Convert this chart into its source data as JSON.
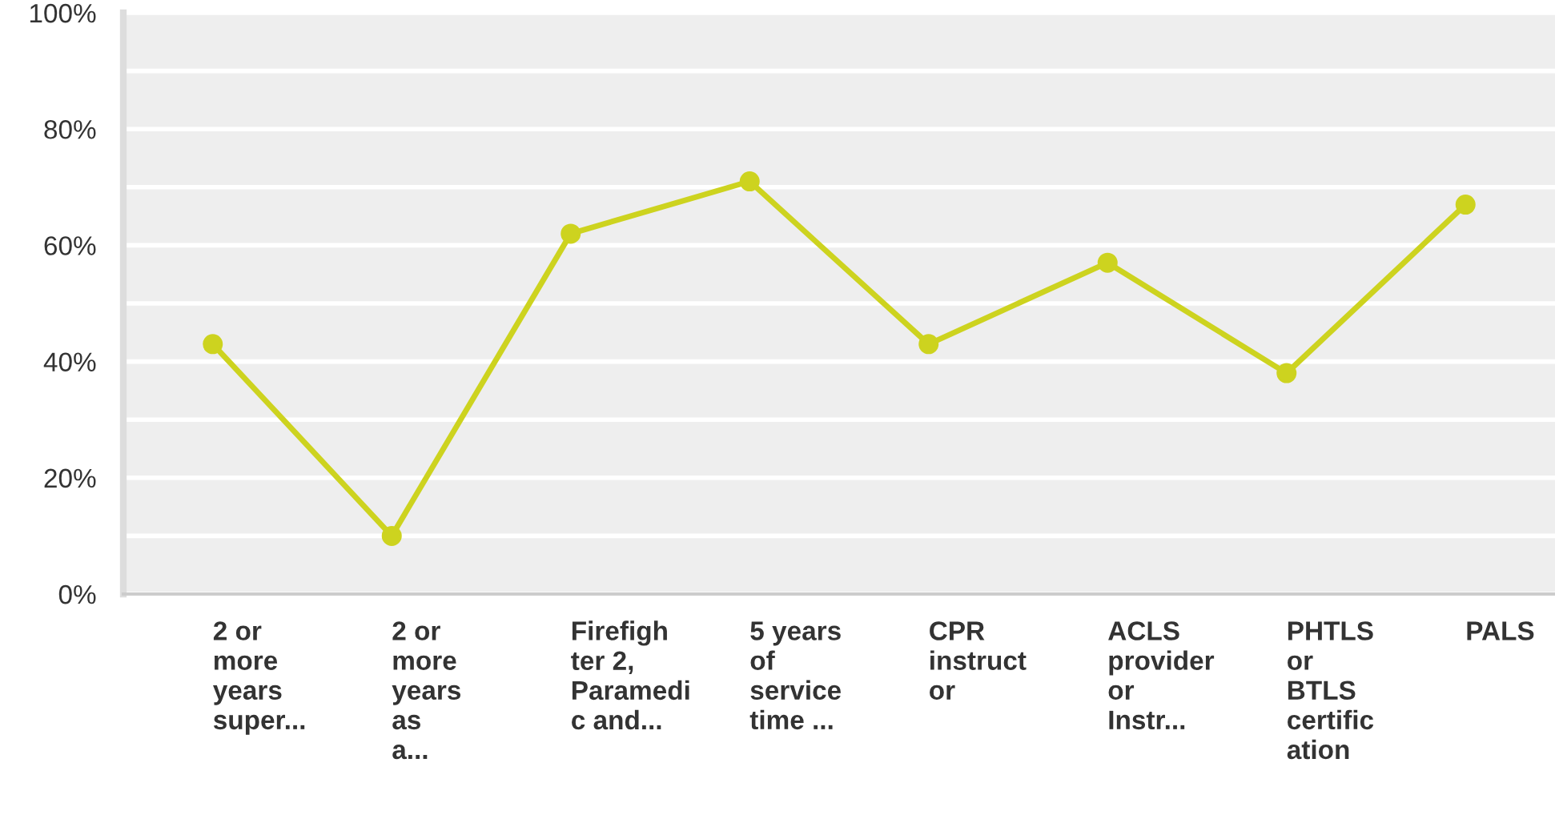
{
  "chart_data": {
    "type": "line",
    "categories": [
      "2 or\nmore\nyears\nsuper...",
      "2 or\nmore\nyears\nas\na...",
      "Firefigh\nter 2,\nParamedi\nc and...",
      "5 years\nof\nservice\ntime ...",
      "CPR\ninstruct\nor",
      "ACLS\nprovider\nor\nInstr...",
      "PHTLS\nor\nBTLS\ncertific\nation",
      "PALS"
    ],
    "series": [
      {
        "color": "#cdd31f",
        "values": [
          43,
          10,
          62,
          71,
          43,
          57,
          38,
          67
        ]
      }
    ],
    "ylim": [
      0,
      100
    ],
    "yticks": [
      {
        "value": 0,
        "label": "0%"
      },
      {
        "value": 10,
        "label": null
      },
      {
        "value": 20,
        "label": "20%"
      },
      {
        "value": 30,
        "label": null
      },
      {
        "value": 40,
        "label": "40%"
      },
      {
        "value": 50,
        "label": null
      },
      {
        "value": 60,
        "label": "60%"
      },
      {
        "value": 70,
        "label": null
      },
      {
        "value": 80,
        "label": "80%"
      },
      {
        "value": 90,
        "label": null
      },
      {
        "value": 100,
        "label": "100%"
      }
    ],
    "grid": "y",
    "marker": "circle",
    "line_style": "solid"
  }
}
